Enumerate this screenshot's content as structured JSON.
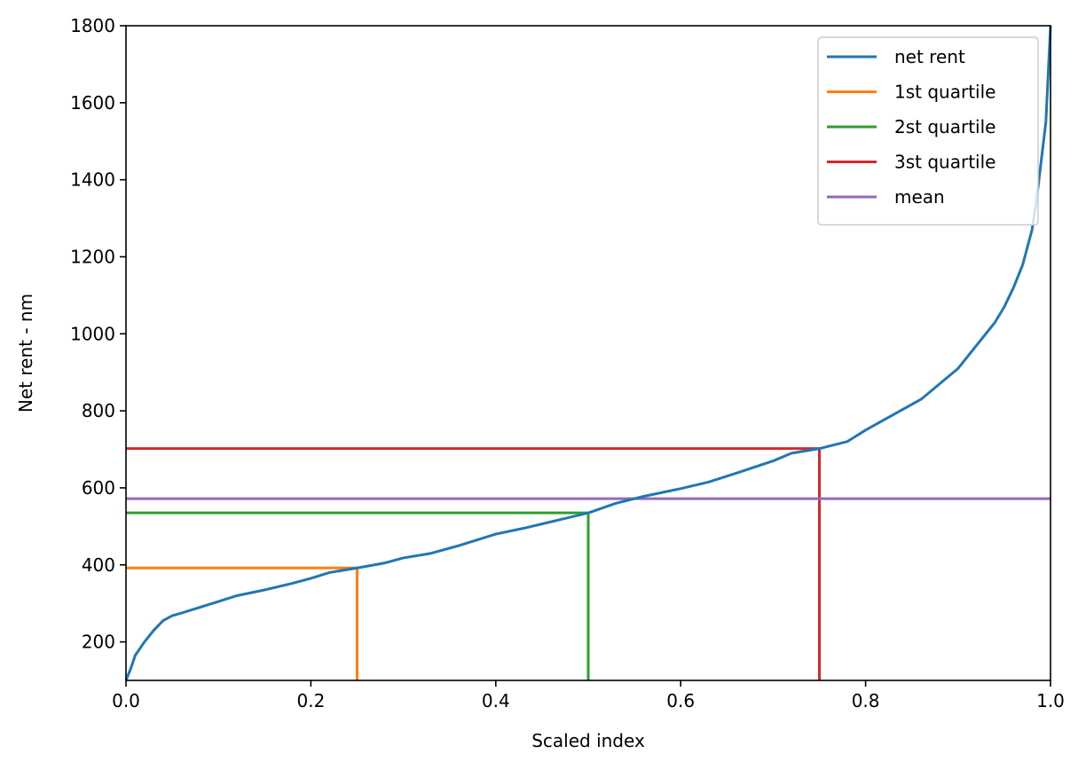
{
  "chart_data": {
    "type": "line",
    "title": "",
    "xlabel": "Scaled index",
    "ylabel": "Net rent - nm",
    "xlim": [
      0.0,
      1.0
    ],
    "ylim": [
      100,
      1800
    ],
    "xticks": [
      0.0,
      0.2,
      0.4,
      0.6,
      0.8,
      1.0
    ],
    "xtick_labels": [
      "0.0",
      "0.2",
      "0.4",
      "0.6",
      "0.8",
      "1.0"
    ],
    "yticks": [
      200,
      400,
      600,
      800,
      1000,
      1200,
      1400,
      1600,
      1800
    ],
    "ytick_labels": [
      "200",
      "400",
      "600",
      "800",
      "1000",
      "1200",
      "1400",
      "1600",
      "1800"
    ],
    "grid": false,
    "legend_position": "top-right",
    "series": [
      {
        "name": "net rent",
        "color": "#1f77b4",
        "x": [
          0.0,
          0.005,
          0.01,
          0.02,
          0.03,
          0.04,
          0.05,
          0.06,
          0.08,
          0.1,
          0.12,
          0.15,
          0.18,
          0.2,
          0.22,
          0.25,
          0.28,
          0.3,
          0.33,
          0.36,
          0.4,
          0.43,
          0.46,
          0.5,
          0.53,
          0.56,
          0.6,
          0.63,
          0.66,
          0.7,
          0.72,
          0.75,
          0.78,
          0.8,
          0.83,
          0.86,
          0.88,
          0.9,
          0.92,
          0.94,
          0.95,
          0.96,
          0.97,
          0.98,
          0.985,
          0.99,
          0.995,
          1.0
        ],
        "y": [
          100,
          130,
          165,
          200,
          230,
          255,
          268,
          275,
          290,
          305,
          320,
          335,
          352,
          365,
          380,
          392,
          405,
          418,
          430,
          450,
          480,
          495,
          512,
          535,
          560,
          578,
          598,
          615,
          638,
          670,
          690,
          702,
          720,
          750,
          790,
          830,
          870,
          910,
          970,
          1030,
          1070,
          1120,
          1180,
          1270,
          1350,
          1450,
          1550,
          1800
        ]
      }
    ],
    "reference_lines": [
      {
        "name": "1st quartile",
        "color": "#ff7f0e",
        "x": 0.25,
        "y": 392
      },
      {
        "name": "2st quartile",
        "color": "#2ca02c",
        "x": 0.5,
        "y": 535
      },
      {
        "name": "3st quartile",
        "color": "#d62728",
        "x": 0.75,
        "y": 702
      },
      {
        "name": "mean",
        "color": "#9467bd",
        "y": 572
      }
    ]
  }
}
